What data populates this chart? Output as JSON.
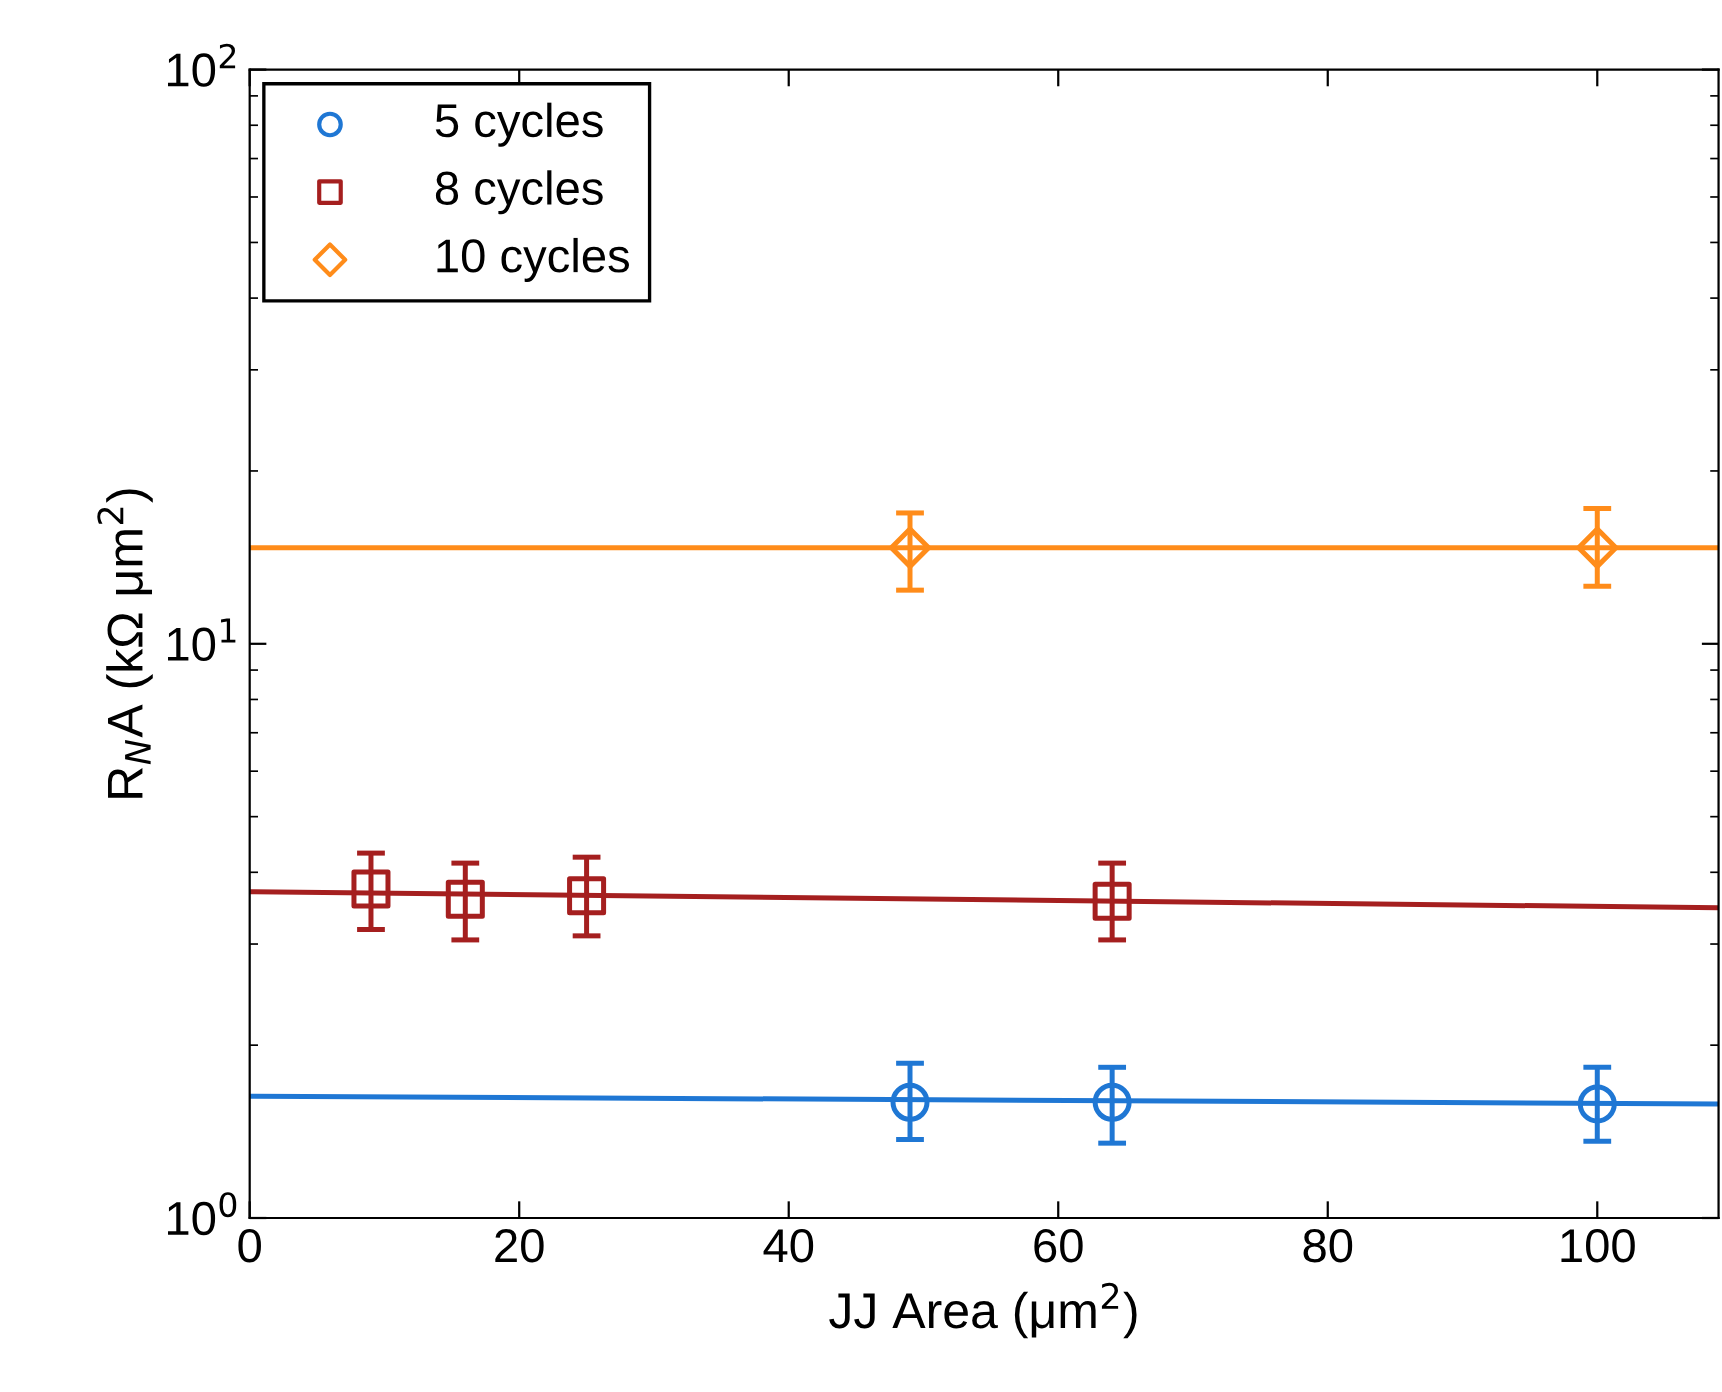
{
  "chart_data": {
    "type": "scatter",
    "xlabel": "JJ Area (μm$^{2}$)",
    "ylabel": "R$_{N}$A (kΩ μm$^{2}$)",
    "log": "y",
    "xlim": [
      0,
      109
    ],
    "xticks": [
      0,
      20,
      40,
      60,
      80,
      100
    ],
    "ylim": [
      1,
      100
    ],
    "yticks": [
      {
        "value": 1,
        "label": "10$^{0}$"
      },
      {
        "value": 10,
        "label": "10$^{1}$"
      },
      {
        "value": 100,
        "label": "10$^{2}$"
      }
    ],
    "grid": false,
    "legend": "top left",
    "series": [
      {
        "name": "5 cycles",
        "color": "#1f77d4",
        "marker": "circle",
        "x": [
          49,
          64,
          100
        ],
        "values": [
          1.59,
          1.59,
          1.58
        ],
        "errors": [
          [
            1.37,
            1.86
          ],
          [
            1.35,
            1.83
          ],
          [
            1.36,
            1.83
          ]
        ]
      },
      {
        "name": "8 cycles",
        "color": "#a51f1f",
        "marker": "square",
        "x": [
          9,
          16,
          25,
          64
        ],
        "values": [
          3.74,
          3.59,
          3.64,
          3.56
        ],
        "errors": [
          [
            3.18,
            4.32
          ],
          [
            3.05,
            4.15
          ],
          [
            3.1,
            4.25
          ],
          [
            3.05,
            4.15
          ]
        ]
      },
      {
        "name": "10 cycles",
        "color": "#ff8c1a",
        "marker": "diamond",
        "x": [
          49,
          100
        ],
        "values": [
          14.7,
          14.7
        ],
        "errors": [
          [
            12.4,
            16.9
          ],
          [
            12.6,
            17.2
          ]
        ]
      },
      {
        "type": "line",
        "color": "#1f77d4",
        "x": [
          0,
          109
        ],
        "values": [
          1.63,
          1.58
        ]
      },
      {
        "type": "line",
        "color": "#a51f1f",
        "x": [
          0,
          109
        ],
        "values": [
          3.7,
          3.47
        ]
      },
      {
        "type": "line",
        "color": "#ff8c1a",
        "x": [
          0,
          109
        ],
        "values": [
          14.7,
          14.7
        ]
      }
    ]
  }
}
